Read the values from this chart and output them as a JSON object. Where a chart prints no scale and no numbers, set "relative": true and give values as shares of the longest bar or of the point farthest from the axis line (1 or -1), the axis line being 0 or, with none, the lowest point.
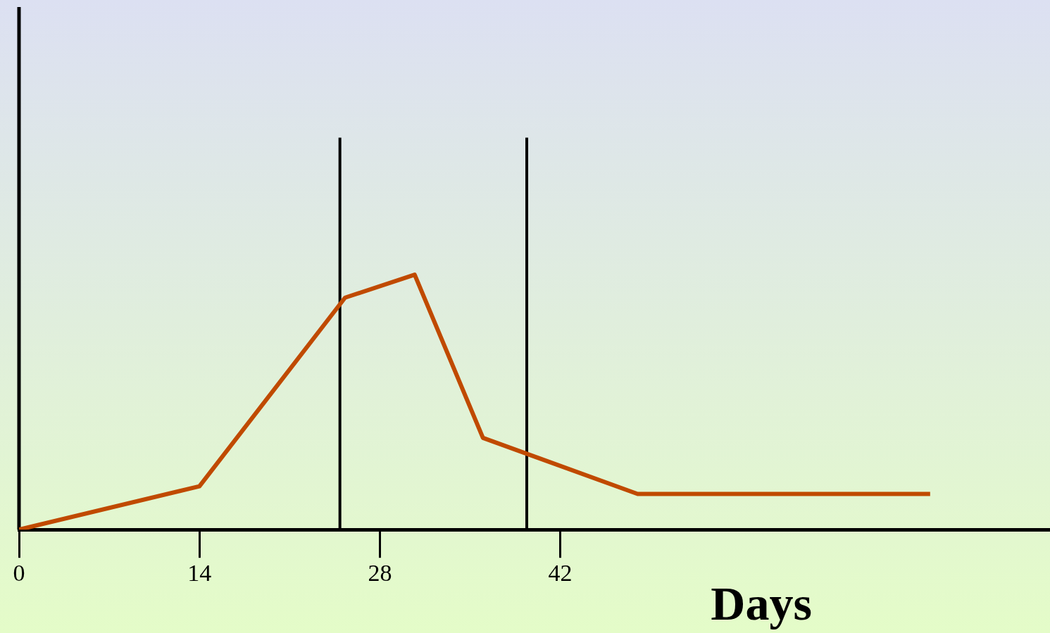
{
  "chart_data": {
    "type": "line",
    "xlabel": "Days",
    "relative": true,
    "xlim": [
      0,
      80
    ],
    "xticks": [
      0,
      14,
      28,
      42
    ],
    "series": [
      {
        "color": "#c04a00",
        "x": [
          0,
          14,
          25.3,
          30.7,
          36,
          48,
          70.7
        ],
        "values": [
          0,
          0.17,
          0.91,
          1,
          0.36,
          0.14,
          0.14
        ]
      }
    ],
    "ref_lines": [
      {
        "axis": "x",
        "value": 24.9,
        "color": "#000000"
      },
      {
        "axis": "x",
        "value": 39.4,
        "color": "#000000"
      }
    ],
    "grid": false,
    "legend": false,
    "marker": "none",
    "line_style": "solid"
  }
}
